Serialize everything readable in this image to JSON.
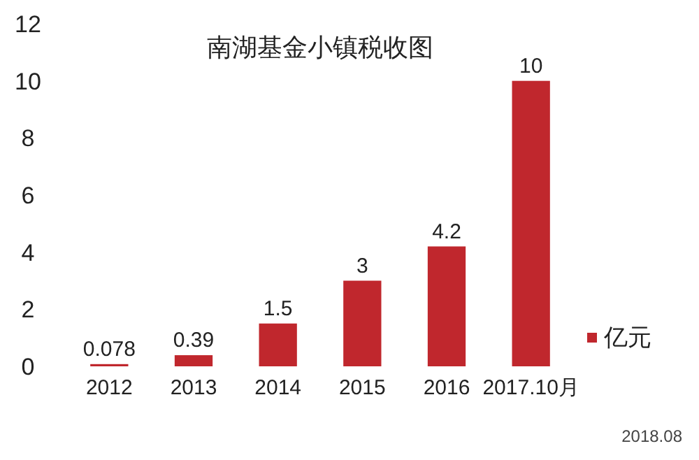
{
  "chart_data": {
    "type": "bar",
    "title": "南湖基金小镇税收图",
    "categories": [
      "2012",
      "2013",
      "2014",
      "2015",
      "2016",
      "2017.10月"
    ],
    "series": [
      {
        "name": "亿元",
        "color": "#c0272d",
        "values": [
          0.078,
          0.39,
          1.5,
          3,
          4.2,
          10
        ]
      }
    ],
    "ylim": [
      0,
      12
    ],
    "yticks": [
      0,
      2,
      4,
      6,
      8,
      10,
      12
    ],
    "data_labels": true,
    "legend": "right",
    "grid": false,
    "annotations": [
      "2018.08"
    ]
  }
}
